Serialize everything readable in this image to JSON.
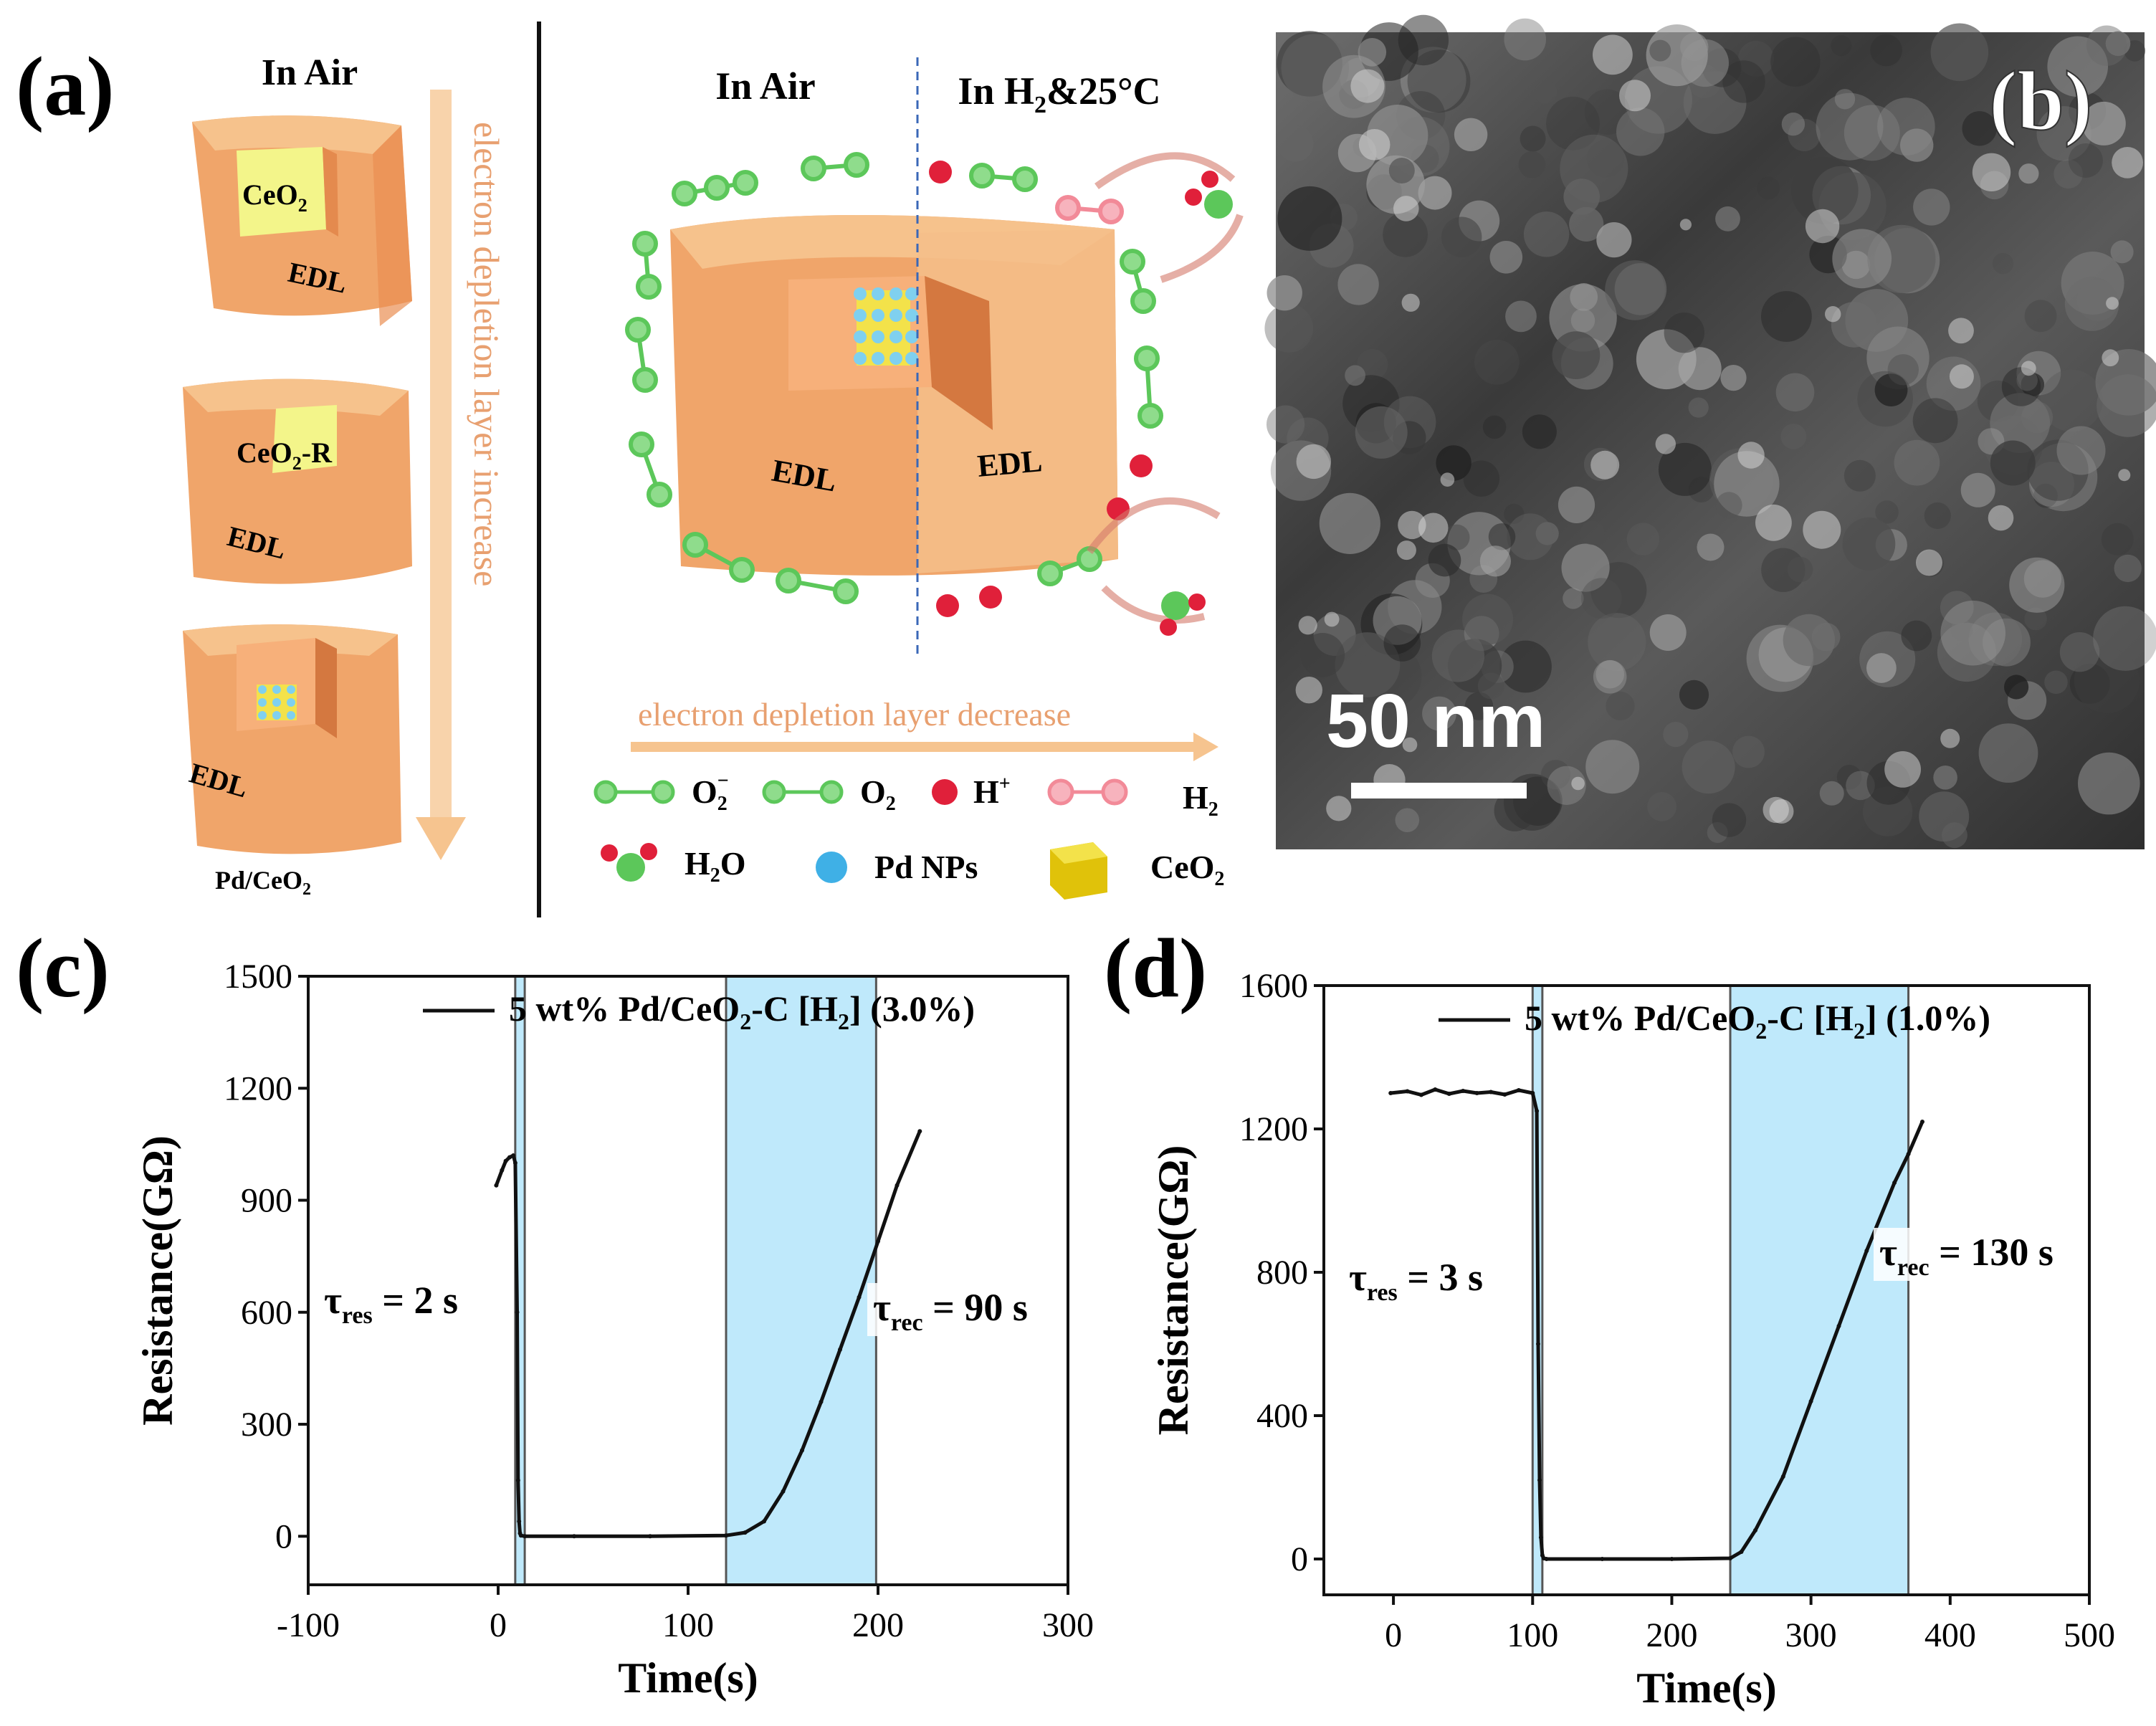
{
  "colors": {
    "cube_face": "#f0a56a",
    "cube_top": "#f6c28c",
    "cube_side": "#e98f52",
    "core": "#f3f58a",
    "arrow": "#f6c48f",
    "arrow_text": "#e8a070",
    "o2_green": "#5cc75a",
    "h_red": "#e0203a",
    "h2_pink": "#f28a98",
    "pd_blue": "#3fb0e6",
    "ceo2_yellow": "#e0c20a",
    "shade_blue": "#bfe9fb",
    "divider_dash": "#3a67b7"
  },
  "panel_a": {
    "label": "(a)",
    "left_title": "In Air",
    "cube1_core": "CeO",
    "cube1_core_sub": "2",
    "cube2_core": "CeO",
    "cube2_core_sub": "2",
    "cube2_core_suffix": "-R",
    "edl": "EDL",
    "bottom_label_main": "Pd/CeO",
    "bottom_label_sub": "2",
    "vertical_arrow_text": "electron depletion layer increase",
    "right_title_left": "In Air",
    "right_title_right_pre": "In H",
    "right_title_right_sub": "2",
    "right_title_right_post": "&25°C",
    "horizontal_arrow_text": "electron depletion layer decrease",
    "legend": {
      "o2minus_base": "O",
      "o2minus_sub": "2",
      "o2minus_sup": "−",
      "o2_base": "O",
      "o2_sub": "2",
      "hplus_base": "H",
      "hplus_sup": "+",
      "h2_base": "H",
      "h2_sub": "2",
      "h2o_pre": "H",
      "h2o_sub": "2",
      "h2o_post": "O",
      "pd": "Pd NPs",
      "ceo2_base": "CeO",
      "ceo2_sub": "2"
    }
  },
  "panel_b": {
    "label": "(b)",
    "scale_bar": "50 nm"
  },
  "chart_data": [
    {
      "panel": "(c)",
      "type": "line",
      "xlabel": "Time(s)",
      "ylabel": "Resistance(GΩ)",
      "xlim": [
        -100,
        300
      ],
      "ylim": [
        -130,
        1500
      ],
      "xticks": [
        -100,
        0,
        100,
        200,
        300
      ],
      "yticks": [
        0,
        300,
        600,
        900,
        1200,
        1500
      ],
      "legend_pre": "5 wt% Pd/CeO",
      "legend_sub": "2",
      "legend_post": "-C [H",
      "legend_sub2": "2",
      "legend_tail": "] (3.0%)",
      "shaded_regions": [
        [
          9,
          14
        ],
        [
          120,
          199
        ]
      ],
      "tau_res_label": "τ",
      "tau_res_sub": "res",
      "tau_res_value": " = 2 s",
      "tau_rec_label": "τ",
      "tau_rec_sub": "rec",
      "tau_rec_value": " = 90 s",
      "series": [
        {
          "name": "5 wt% Pd/CeO2-C [H2] (3.0%)",
          "x": [
            -1,
            2,
            4,
            6,
            8,
            9,
            10,
            10.5,
            11,
            11.5,
            12,
            14,
            40,
            80,
            120,
            130,
            140,
            150,
            160,
            170,
            180,
            190,
            200,
            210,
            222
          ],
          "y": [
            940,
            980,
            1005,
            1015,
            1020,
            1000,
            600,
            150,
            40,
            8,
            2,
            0,
            0,
            0,
            2,
            10,
            40,
            120,
            230,
            360,
            500,
            640,
            790,
            940,
            1085
          ]
        }
      ]
    },
    {
      "panel": "(d)",
      "type": "line",
      "xlabel": "Time(s)",
      "ylabel": "Resistance(GΩ)",
      "xlim": [
        -50,
        500
      ],
      "ylim": [
        -100,
        1600
      ],
      "xticks": [
        0,
        100,
        200,
        300,
        400,
        500
      ],
      "yticks": [
        0,
        400,
        800,
        1200,
        1600
      ],
      "legend_pre": "5 wt% Pd/CeO",
      "legend_sub": "2",
      "legend_post": "-C [H",
      "legend_sub2": "2",
      "legend_tail": "] (1.0%)",
      "shaded_regions": [
        [
          100,
          107
        ],
        [
          242,
          370
        ]
      ],
      "tau_res_label": "τ",
      "tau_res_sub": "res",
      "tau_res_value": " = 3 s",
      "tau_rec_label": "τ",
      "tau_rec_sub": "rec",
      "tau_rec_value": " = 130 s",
      "series": [
        {
          "name": "5 wt% Pd/CeO2-C [H2] (1.0%)",
          "x": [
            -2,
            10,
            20,
            30,
            40,
            50,
            60,
            70,
            80,
            90,
            100,
            103,
            104,
            105,
            106,
            107,
            108,
            110,
            150,
            200,
            242,
            250,
            260,
            280,
            300,
            320,
            340,
            360,
            370,
            380
          ],
          "y": [
            1300,
            1305,
            1295,
            1310,
            1298,
            1306,
            1300,
            1303,
            1296,
            1308,
            1300,
            1250,
            600,
            220,
            60,
            10,
            2,
            0,
            0,
            0,
            2,
            20,
            80,
            230,
            440,
            650,
            860,
            1050,
            1130,
            1220
          ]
        }
      ]
    }
  ]
}
